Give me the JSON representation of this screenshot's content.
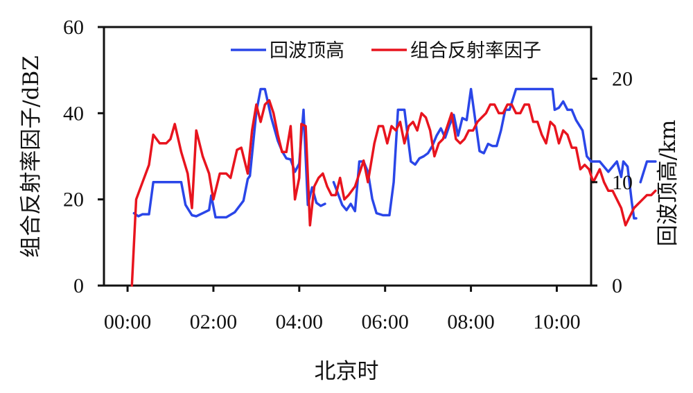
{
  "chart_data": {
    "type": "line",
    "xlabel": "北京时",
    "ylabel_left": "组合反射率因子/dBZ",
    "ylabel_right": "回波顶高/km",
    "x_tick_labels": [
      "00:00",
      "02:00",
      "04:00",
      "06:00",
      "08:00",
      "10:00"
    ],
    "x_tick_hours": [
      0,
      2,
      4,
      6,
      8,
      10
    ],
    "xlim_hours": [
      -0.55,
      10.8
    ],
    "y_left_lim": [
      0,
      60
    ],
    "y_left_ticks": [
      "0",
      "20",
      "40",
      "60"
    ],
    "y_right_lim": [
      0,
      25
    ],
    "y_right_ticks": [
      "0",
      "10",
      "20"
    ],
    "legend_position": "top-right",
    "series": [
      {
        "name": "回波顶高",
        "color": "#2a46e8",
        "axis": "right",
        "segments": [
          [
            [
              0.15,
              7.0
            ],
            [
              0.25,
              6.7
            ],
            [
              0.35,
              6.9
            ],
            [
              0.5,
              6.9
            ],
            [
              0.6,
              10.0
            ],
            [
              1.0,
              10.0
            ],
            [
              1.25,
              10.0
            ],
            [
              1.35,
              7.8
            ],
            [
              1.5,
              6.8
            ],
            [
              1.6,
              6.7
            ],
            [
              1.75,
              7.0
            ],
            [
              1.9,
              7.3
            ],
            [
              1.95,
              8.7
            ],
            [
              2.05,
              6.6
            ],
            [
              2.3,
              6.6
            ],
            [
              2.5,
              7.1
            ],
            [
              2.7,
              8.2
            ],
            [
              2.8,
              10.3
            ],
            [
              2.85,
              10.6
            ],
            [
              3.0,
              16.8
            ],
            [
              3.1,
              19.0
            ],
            [
              3.2,
              19.0
            ],
            [
              3.35,
              16.2
            ],
            [
              3.5,
              14.0
            ],
            [
              3.6,
              13.0
            ],
            [
              3.7,
              12.3
            ],
            [
              3.8,
              12.2
            ],
            [
              3.9,
              11.0
            ],
            [
              4.0,
              11.8
            ],
            [
              4.1,
              17.0
            ],
            [
              4.2,
              7.8
            ],
            [
              4.3,
              9.5
            ],
            [
              4.4,
              8.0
            ],
            [
              4.5,
              7.7
            ],
            [
              4.6,
              7.9
            ]
          ],
          [
            [
              4.8,
              10.0
            ],
            [
              5.0,
              7.8
            ],
            [
              5.1,
              7.3
            ],
            [
              5.2,
              7.9
            ],
            [
              5.3,
              7.2
            ],
            [
              5.4,
              12.0
            ],
            [
              5.5,
              12.0
            ],
            [
              5.6,
              11.0
            ],
            [
              5.7,
              8.4
            ],
            [
              5.8,
              7.0
            ],
            [
              5.95,
              6.8
            ],
            [
              6.1,
              6.8
            ],
            [
              6.2,
              10.0
            ],
            [
              6.3,
              17.0
            ],
            [
              6.45,
              17.0
            ],
            [
              6.6,
              12.0
            ],
            [
              6.7,
              11.7
            ],
            [
              6.8,
              12.3
            ],
            [
              6.9,
              12.5
            ],
            [
              7.0,
              12.8
            ],
            [
              7.1,
              13.5
            ],
            [
              7.2,
              14.5
            ],
            [
              7.3,
              15.2
            ],
            [
              7.4,
              14.3
            ],
            [
              7.5,
              15.5
            ],
            [
              7.6,
              16.5
            ],
            [
              7.7,
              14.5
            ],
            [
              7.8,
              16.2
            ],
            [
              7.9,
              16.0
            ],
            [
              8.0,
              19.0
            ],
            [
              8.2,
              13.0
            ],
            [
              8.3,
              12.8
            ],
            [
              8.4,
              13.7
            ],
            [
              8.5,
              13.5
            ],
            [
              8.6,
              13.5
            ],
            [
              8.7,
              15.0
            ],
            [
              8.8,
              17.0
            ],
            [
              8.9,
              17.0
            ],
            [
              9.05,
              19.0
            ],
            [
              9.9,
              19.0
            ],
            [
              9.95,
              17.0
            ],
            [
              10.05,
              17.2
            ],
            [
              10.15,
              17.8
            ],
            [
              10.25,
              17.0
            ],
            [
              10.35,
              17.0
            ],
            [
              10.45,
              16.0
            ],
            [
              10.6,
              15.0
            ],
            [
              10.7,
              12.5
            ],
            [
              10.8,
              12.0
            ],
            [
              11.0,
              12.0
            ],
            [
              11.2,
              11.0
            ],
            [
              11.4,
              12.0
            ],
            [
              11.5,
              10.5
            ],
            [
              11.55,
              12.0
            ],
            [
              11.65,
              11.5
            ],
            [
              11.75,
              8.0
            ],
            [
              11.8,
              6.5
            ],
            [
              11.85,
              6.5
            ]
          ],
          [
            [
              11.95,
              10.0
            ],
            [
              12.1,
              12.0
            ],
            [
              12.3,
              12.0
            ]
          ]
        ]
      },
      {
        "name": "组合反射率因子",
        "color": "#e8141e",
        "axis": "left",
        "segments": [
          [
            [
              0.1,
              0.0
            ],
            [
              0.2,
              20.0
            ],
            [
              0.35,
              24.0
            ],
            [
              0.5,
              28.0
            ],
            [
              0.6,
              35.0
            ],
            [
              0.75,
              33.0
            ],
            [
              0.9,
              33.0
            ],
            [
              1.0,
              34.0
            ],
            [
              1.1,
              37.5
            ],
            [
              1.25,
              31.0
            ],
            [
              1.4,
              26.0
            ],
            [
              1.5,
              18.0
            ],
            [
              1.6,
              36.0
            ],
            [
              1.75,
              30.0
            ],
            [
              1.9,
              26.0
            ],
            [
              2.0,
              20.0
            ],
            [
              2.15,
              26.0
            ],
            [
              2.3,
              26.0
            ],
            [
              2.4,
              25.0
            ],
            [
              2.55,
              31.5
            ],
            [
              2.65,
              32.0
            ],
            [
              2.8,
              26.0
            ],
            [
              2.9,
              36.0
            ],
            [
              3.0,
              42.0
            ],
            [
              3.1,
              38.0
            ],
            [
              3.2,
              42.0
            ],
            [
              3.3,
              43.0
            ],
            [
              3.4,
              40.0
            ],
            [
              3.5,
              35.0
            ],
            [
              3.6,
              31.0
            ],
            [
              3.7,
              31.0
            ],
            [
              3.8,
              37.0
            ],
            [
              3.9,
              20.0
            ],
            [
              4.0,
              25.0
            ],
            [
              4.05,
              37.5
            ],
            [
              4.15,
              37.0
            ],
            [
              4.25,
              14.0
            ],
            [
              4.35,
              23.0
            ],
            [
              4.45,
              25.0
            ],
            [
              4.55,
              26.0
            ],
            [
              4.65,
              23.0
            ],
            [
              4.75,
              21.0
            ],
            [
              4.85,
              21.0
            ],
            [
              4.95,
              25.0
            ],
            [
              5.05,
              20.0
            ],
            [
              5.15,
              21.0
            ],
            [
              5.3,
              23.0
            ],
            [
              5.4,
              26.0
            ],
            [
              5.5,
              29.0
            ],
            [
              5.6,
              24.0
            ],
            [
              5.75,
              33.0
            ],
            [
              5.85,
              37.0
            ],
            [
              5.95,
              37.0
            ],
            [
              6.05,
              33.0
            ],
            [
              6.15,
              37.0
            ],
            [
              6.25,
              36.0
            ],
            [
              6.35,
              38.0
            ],
            [
              6.45,
              33.0
            ],
            [
              6.55,
              37.0
            ],
            [
              6.65,
              38.0
            ],
            [
              6.75,
              36.0
            ],
            [
              6.85,
              40.0
            ],
            [
              6.95,
              39.0
            ],
            [
              7.05,
              36.0
            ],
            [
              7.15,
              30.0
            ],
            [
              7.25,
              33.0
            ],
            [
              7.35,
              34.0
            ],
            [
              7.45,
              37.0
            ],
            [
              7.55,
              40.0
            ],
            [
              7.65,
              34.0
            ],
            [
              7.75,
              33.0
            ],
            [
              7.85,
              34.0
            ],
            [
              7.95,
              36.0
            ],
            [
              8.05,
              36.0
            ],
            [
              8.15,
              38.0
            ],
            [
              8.25,
              39.0
            ],
            [
              8.35,
              40.0
            ],
            [
              8.45,
              42.0
            ],
            [
              8.55,
              42.0
            ],
            [
              8.65,
              40.0
            ],
            [
              8.75,
              40.0
            ],
            [
              8.85,
              42.0
            ],
            [
              8.95,
              42.0
            ],
            [
              9.05,
              40.0
            ],
            [
              9.15,
              40.0
            ],
            [
              9.25,
              42.0
            ],
            [
              9.35,
              42.0
            ],
            [
              9.45,
              38.0
            ],
            [
              9.55,
              38.0
            ],
            [
              9.65,
              35.0
            ],
            [
              9.75,
              33.0
            ],
            [
              9.85,
              38.0
            ],
            [
              9.95,
              37.0
            ],
            [
              10.05,
              33.0
            ],
            [
              10.15,
              36.0
            ],
            [
              10.25,
              35.0
            ],
            [
              10.35,
              32.0
            ],
            [
              10.45,
              32.0
            ],
            [
              10.55,
              27.0
            ],
            [
              10.65,
              28.0
            ],
            [
              10.75,
              27.0
            ],
            [
              10.85,
              24.0
            ],
            [
              10.95,
              26.0
            ],
            [
              11.0,
              27.0
            ],
            [
              11.1,
              24.0
            ],
            [
              11.2,
              22.0
            ],
            [
              11.3,
              22.0
            ],
            [
              11.4,
              20.0
            ],
            [
              11.5,
              18.0
            ],
            [
              11.6,
              14.0
            ],
            [
              11.7,
              16.0
            ],
            [
              11.8,
              18.0
            ],
            [
              11.9,
              19.0
            ],
            [
              12.0,
              20.0
            ],
            [
              12.1,
              21.0
            ],
            [
              12.2,
              21.0
            ],
            [
              12.3,
              22.0
            ]
          ]
        ]
      }
    ]
  }
}
